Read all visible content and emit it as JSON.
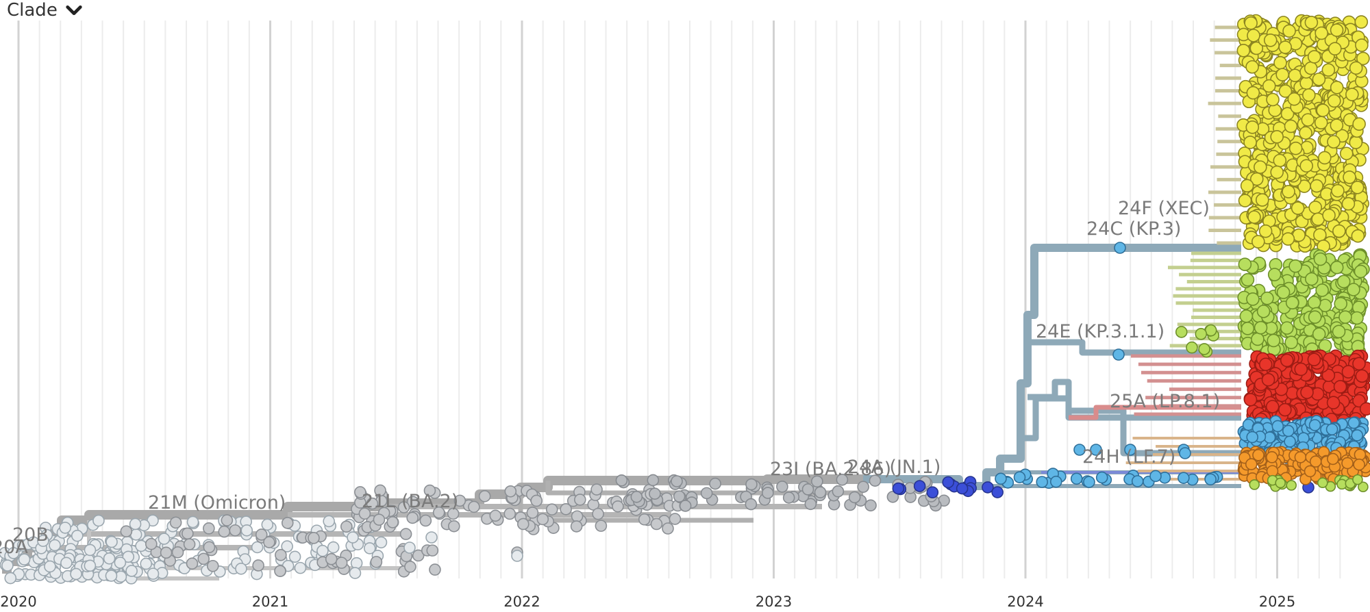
{
  "header": {
    "color_by_label": "Clade",
    "dropdown_icon": "chevron-down-icon"
  },
  "chart_data": {
    "type": "scatter",
    "title": "",
    "xlabel": "",
    "ylabel": "",
    "x_axis": {
      "type": "date",
      "ticks": [
        "2020",
        "2021",
        "2022",
        "2023",
        "2024",
        "2025"
      ],
      "range": [
        "2020-01-01",
        "2025-04-05"
      ]
    },
    "grid": true,
    "clades": [
      {
        "label": "20A",
        "color": "#dfe6ea"
      },
      {
        "label": "20B",
        "color": "#dfe6ea"
      },
      {
        "label": "21M (Omicron)",
        "color": "#c8ccd0"
      },
      {
        "label": "21L (BA.2)",
        "color": "#bcbfc2"
      },
      {
        "label": "23I (BA.2.86)",
        "color": "#a9adb2"
      },
      {
        "label": "24A (JN.1)",
        "color": "#3b4fd8"
      },
      {
        "label": "24C (KP.3)",
        "color": "#5fb6e6"
      },
      {
        "label": "24E (KP.3.1.1)",
        "color": "#5fb6e6"
      },
      {
        "label": "24F (XEC)",
        "color": "#f0ea47"
      },
      {
        "label": "25A (LP.8.1)",
        "color": "#e8352a"
      },
      {
        "label": "24H (LF.7)",
        "color": "#f59a2b"
      }
    ],
    "branch_color": "#8ea9b8",
    "extra_colors": {
      "kp311_descendants": "#b7de5e",
      "early_tips": "#e6eaed",
      "mid_tips": "#c7c9cc"
    }
  }
}
